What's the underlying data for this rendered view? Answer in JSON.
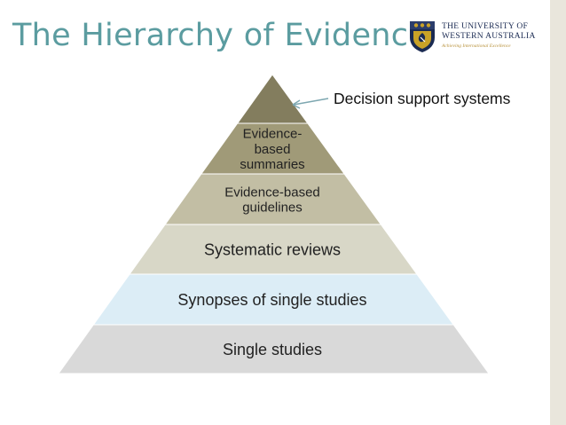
{
  "title": "The Hierarchy of Evidence",
  "logo": {
    "line1": "The University of",
    "line2": "Western Australia",
    "tagline": "Achieving International Excellence",
    "crest_icon": "university-crest-icon",
    "colors": {
      "navy": "#1a2a52",
      "gold": "#c9a227"
    }
  },
  "pyramid": {
    "levels": [
      {
        "lines": [],
        "color": "#837d5e"
      },
      {
        "lines": [
          "Evidence-",
          "based",
          "summaries"
        ],
        "color": "#a09a78"
      },
      {
        "lines": [
          "Evidence-based",
          "guidelines"
        ],
        "color": "#c2bea4"
      },
      {
        "lines": [
          "Systematic reviews"
        ],
        "color": "#d8d7c7"
      },
      {
        "lines": [
          "Synopses of single studies"
        ],
        "color": "#dcedf6"
      },
      {
        "lines": [
          "Single studies"
        ],
        "color": "#d9d9d9"
      }
    ]
  },
  "callout": {
    "text": "Decision support systems",
    "arrow_color": "#7da7b0"
  },
  "colors": {
    "title": "#5b9ca0",
    "background": "#ffffff",
    "frame": "#e9e6dc"
  }
}
